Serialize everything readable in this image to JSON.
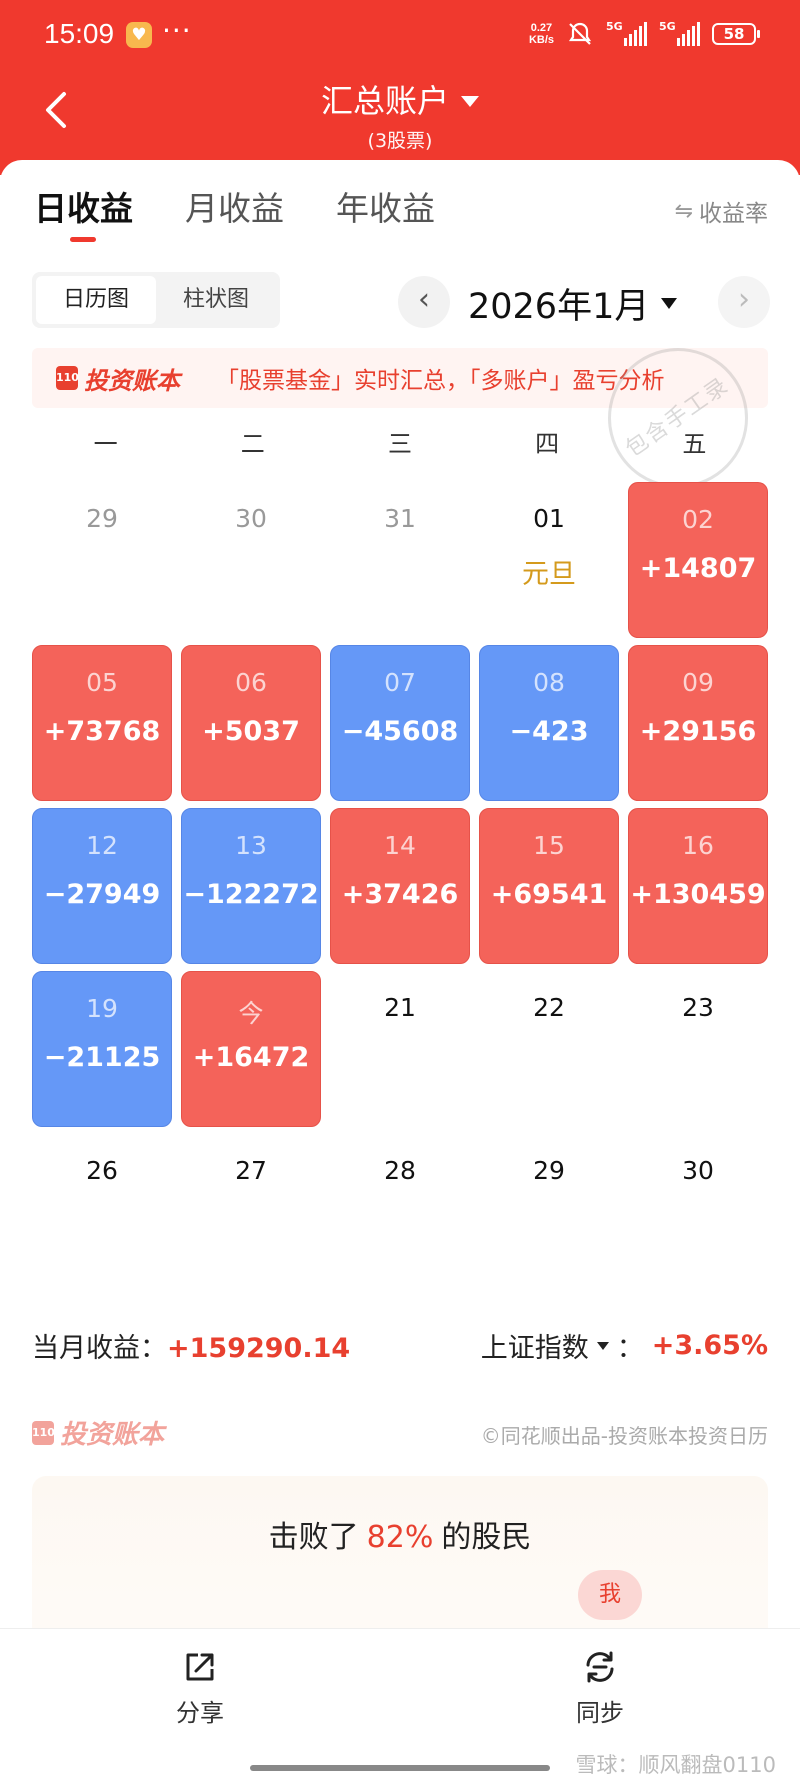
{
  "status_bar": {
    "time": "15:09",
    "more": "···",
    "net_speed_value": "0.27",
    "net_speed_unit": "KB/s",
    "signal1_label": "5G",
    "signal2_label": "5G",
    "battery": "58"
  },
  "header": {
    "title": "汇总账户",
    "subtitle": "(3股票)"
  },
  "tabs": [
    {
      "label": "日收益",
      "active": true
    },
    {
      "label": "月收益",
      "active": false
    },
    {
      "label": "年收益",
      "active": false
    }
  ],
  "rate_toggle": {
    "icon": "swap-icon",
    "label": "收益率"
  },
  "view_toggle": [
    {
      "label": "日历图",
      "active": true
    },
    {
      "label": "柱状图",
      "active": false
    }
  ],
  "month_nav": {
    "prev": "‹",
    "next": "›",
    "label": "2026年1月"
  },
  "banner": {
    "logo_text": "投资账本",
    "text": "「股票基金」实时汇总，「多账户」盈亏分析"
  },
  "stamp": "包含手工录",
  "weekdays": [
    "一",
    "二",
    "三",
    "四",
    "五"
  ],
  "calendar": [
    {
      "day": "29",
      "value": "",
      "type": "grey"
    },
    {
      "day": "30",
      "value": "",
      "type": "grey"
    },
    {
      "day": "31",
      "value": "",
      "type": "grey"
    },
    {
      "day": "01",
      "value": "元旦",
      "type": "holiday"
    },
    {
      "day": "02",
      "value": "+14807",
      "type": "red"
    },
    {
      "day": "05",
      "value": "+73768",
      "type": "red"
    },
    {
      "day": "06",
      "value": "+5037",
      "type": "red"
    },
    {
      "day": "07",
      "value": "−45608",
      "type": "blue"
    },
    {
      "day": "08",
      "value": "−423",
      "type": "blue"
    },
    {
      "day": "09",
      "value": "+29156",
      "type": "red"
    },
    {
      "day": "12",
      "value": "−27949",
      "type": "blue"
    },
    {
      "day": "13",
      "value": "−122272",
      "type": "blue"
    },
    {
      "day": "14",
      "value": "+37426",
      "type": "red"
    },
    {
      "day": "15",
      "value": "+69541",
      "type": "red"
    },
    {
      "day": "16",
      "value": "+130459",
      "type": "red"
    },
    {
      "day": "19",
      "value": "−21125",
      "type": "blue"
    },
    {
      "day": "今",
      "value": "+16472",
      "type": "red"
    },
    {
      "day": "21",
      "value": "",
      "type": "none"
    },
    {
      "day": "22",
      "value": "",
      "type": "none"
    },
    {
      "day": "23",
      "value": "",
      "type": "none"
    },
    {
      "day": "26",
      "value": "",
      "type": "none"
    },
    {
      "day": "27",
      "value": "",
      "type": "none"
    },
    {
      "day": "28",
      "value": "",
      "type": "none"
    },
    {
      "day": "29",
      "value": "",
      "type": "none"
    },
    {
      "day": "30",
      "value": "",
      "type": "none"
    }
  ],
  "colors": {
    "brand_red": "#f0392e",
    "profit_cell": "#f4635a",
    "loss_cell": "#6598f7",
    "holiday": "#d49a1c"
  },
  "summary": {
    "month_label": "当月收益：",
    "month_value": "+159290.14",
    "index_label": "上证指数",
    "index_sep": "：",
    "index_value": "+3.65%"
  },
  "credit": {
    "logo_text": "投资账本",
    "text": "©同花顺出品-投资账本投资日历"
  },
  "beat": {
    "prefix": "击败了",
    "percent": "82%",
    "suffix": "的股民",
    "me": "我"
  },
  "bottom_bar": {
    "share_label": "分享",
    "sync_label": "同步"
  },
  "watermark": "雪球：顺风翻盘0110"
}
